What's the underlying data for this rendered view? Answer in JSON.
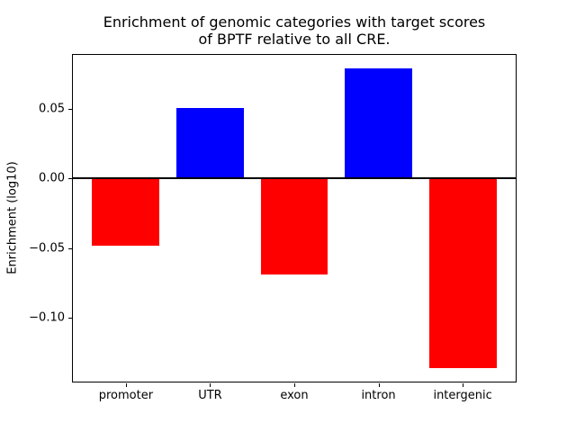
{
  "figure": {
    "background": "#ffffff",
    "text_color": "#000000"
  },
  "chart_data": {
    "type": "bar",
    "title": "Enrichment of genomic categories with target scores\nof BPTF relative to all CRE.",
    "xlabel": "",
    "ylabel": "Enrichment (log10)",
    "categories": [
      "promoter",
      "UTR",
      "exon",
      "intron",
      "intergenic"
    ],
    "values": [
      -0.048,
      0.051,
      -0.069,
      0.079,
      -0.136
    ],
    "bar_colors": [
      "#ff0000",
      "#0000ff",
      "#ff0000",
      "#0000ff",
      "#ff0000"
    ],
    "positive_color": "#0000ff",
    "negative_color": "#ff0000",
    "yticks": [
      0.05,
      0.0,
      -0.05,
      -0.1
    ],
    "ylim": [
      -0.1465,
      0.0895
    ],
    "xlim": [
      -0.64,
      4.64
    ],
    "bar_width_fraction": 0.8,
    "grid": false,
    "legend": false,
    "zero_line": true
  }
}
